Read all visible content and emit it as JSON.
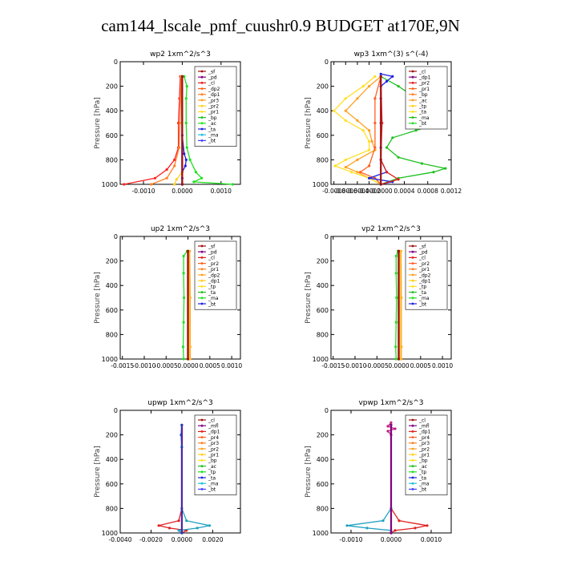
{
  "figure_title": "cam144_lscale_pmf_cuushr0.9  BUDGET at170E,9N",
  "chart_data": [
    {
      "type": "line",
      "title": "wp2  1xm^2/s^3",
      "ylabel": "Pressure [hPa]",
      "xlim": [
        -0.0016,
        0.0015
      ],
      "ylim": [
        1000,
        0
      ],
      "xticks": [
        -0.001,
        0.0,
        0.001
      ],
      "xtick_labels": [
        "-0.0010",
        "0.0000",
        "0.0010"
      ],
      "yticks": [
        0,
        200,
        400,
        600,
        800,
        1000
      ],
      "ytick_labels": [
        "0",
        "200",
        "400",
        "600",
        "800",
        "1000"
      ],
      "legend": [
        "_sf",
        "_pd",
        "_cl",
        "_dp2",
        "_dp1",
        "_pr3",
        "_pr2",
        "_pr1",
        "_bp",
        "_ac",
        "_ta",
        "_ma",
        "_bt"
      ],
      "series": [
        {
          "name": "_cl",
          "color": "#ff2020",
          "y": [
            120,
            300,
            500,
            700,
            800,
            880,
            950,
            1000
          ],
          "values": [
            -5e-05,
            -7e-05,
            -0.0001,
            -0.0001,
            -0.0002,
            -0.0004,
            -0.0007,
            -0.0015
          ]
        },
        {
          "name": "_dp2",
          "color": "#ff8020",
          "y": [
            120,
            300,
            500,
            700,
            850,
            950,
            1000
          ],
          "values": [
            -3e-05,
            -4e-05,
            -6e-05,
            -8e-05,
            -0.0002,
            -0.0004,
            -0.0008
          ]
        },
        {
          "name": "_pr1",
          "color": "#20e020",
          "y": [
            120,
            200,
            300,
            500,
            700,
            800,
            900,
            950,
            980,
            1000
          ],
          "values": [
            5e-05,
            0.00012,
            0.0001,
            0.0001,
            0.00012,
            0.0002,
            0.00035,
            0.0005,
            0.0003,
            0.0013
          ]
        },
        {
          "name": "_ta",
          "color": "#2020e0",
          "y": [
            600,
            750,
            800,
            850,
            900,
            950,
            1000
          ],
          "values": [
            0.0,
            5e-05,
            0.0001,
            8e-05,
            0.0,
            0.0,
            0.0
          ]
        },
        {
          "name": "_pr3",
          "color": "#ffd020",
          "y": [
            120,
            500,
            900,
            960,
            1000
          ],
          "values": [
            -2e-05,
            -1e-05,
            0.0,
            -0.00015,
            -0.0002
          ]
        },
        {
          "name": "_pd",
          "color": "#800080",
          "y": [
            120,
            1000
          ],
          "values": [
            0.0,
            0.0
          ]
        },
        {
          "name": "_bt",
          "color": "#20c0e0",
          "y": [
            120,
            1000
          ],
          "values": [
            0.0,
            0.0
          ]
        },
        {
          "name": "_sf",
          "color": "#a01010",
          "y": [
            120,
            1000
          ],
          "values": [
            0.0,
            0.0
          ]
        }
      ]
    },
    {
      "type": "line",
      "title": "wp3  1xm^(3) s^(-4)",
      "ylabel": "Pressure [hPa]",
      "xlim": [
        -0.00085,
        0.0012
      ],
      "ylim": [
        1000,
        0
      ],
      "xticks": [
        -0.0008,
        -0.0006,
        -0.0004,
        -0.0002,
        0.0,
        0.0004,
        0.0008,
        0.0012
      ],
      "xtick_labels": [
        "-0.0008",
        "-0.0006",
        "-0.0004",
        "-0.0002",
        "-0.0000",
        "0.0004",
        "0.0008",
        "0.0012"
      ],
      "yticks": [
        0,
        200,
        400,
        600,
        800,
        1000
      ],
      "ytick_labels": [
        "0",
        "200",
        "400",
        "600",
        "800",
        "1000"
      ],
      "legend": [
        "_cl",
        "_dp1",
        "_pr2",
        "_pr1",
        "_bp",
        "_ac",
        "_tp",
        "_ta",
        "_ma",
        "_bt"
      ],
      "series": [
        {
          "name": "_ac",
          "color": "#20c020",
          "y": [
            120,
            200,
            280,
            350,
            420,
            480,
            560,
            620,
            700,
            780,
            830,
            870,
            900,
            950,
            1000
          ],
          "values": [
            0.0,
            0.0003,
            0.00055,
            0.0005,
            0.0007,
            0.0011,
            0.0006,
            0.0002,
            0.0001,
            0.0003,
            0.0007,
            0.0011,
            0.0009,
            0.0003,
            0.0
          ]
        },
        {
          "name": "_pr2",
          "color": "#ffa020",
          "y": [
            120,
            200,
            300,
            400,
            480,
            560,
            650,
            720,
            800,
            860,
            900,
            950,
            1000
          ],
          "values": [
            0.0,
            -0.0002,
            -0.0004,
            -0.0006,
            -0.0004,
            -0.0002,
            -0.00015,
            -0.0001,
            -0.0004,
            -0.0006,
            -0.0004,
            -0.0002,
            0.0
          ]
        },
        {
          "name": "_pr1",
          "color": "#ffe020",
          "y": [
            120,
            200,
            300,
            400,
            480,
            560,
            650,
            720,
            800,
            850,
            900,
            950,
            1000
          ],
          "values": [
            -0.0001,
            -0.0003,
            -0.0006,
            -0.0008,
            -0.0006,
            -0.0003,
            -0.0002,
            -0.0002,
            -0.0006,
            -0.00078,
            -0.0005,
            -0.0002,
            0.0
          ]
        },
        {
          "name": "_dp1",
          "color": "#ff6020",
          "y": [
            120,
            300,
            500,
            700,
            850,
            900,
            950,
            1000
          ],
          "values": [
            0.0,
            -0.0001,
            -0.0001,
            -0.0001,
            -0.0002,
            -0.00035,
            -0.0001,
            0.0
          ]
        },
        {
          "name": "_tp",
          "color": "#2020e0",
          "y": [
            100,
            120,
            160,
            200,
            300,
            500,
            700,
            800,
            900,
            950,
            980,
            1000
          ],
          "values": [
            0.0,
            0.0002,
            0.0001,
            0.0,
            0.0,
            0.0,
            0.0,
            0.0,
            0.0001,
            -0.0002,
            0.0002,
            0.0
          ]
        },
        {
          "name": "_cl",
          "color": "#e02020",
          "y": [
            120,
            500,
            800,
            900,
            960,
            1000
          ],
          "values": [
            0.0,
            2e-05,
            0.0,
            0.0001,
            0.0003,
            0.0
          ]
        },
        {
          "name": "_bt",
          "color": "#20c0e0",
          "y": [
            120,
            1000
          ],
          "values": [
            0.0,
            0.0
          ]
        },
        {
          "name": "_ma",
          "color": "#a01010",
          "y": [
            120,
            1000
          ],
          "values": [
            0.0,
            0.0
          ]
        }
      ]
    },
    {
      "type": "line",
      "title": "up2  1xm^2/s^3",
      "ylabel": "Pressure [hPa]",
      "xlim": [
        -0.00155,
        0.0012
      ],
      "ylim": [
        1000,
        0
      ],
      "xticks": [
        -0.0015,
        -0.001,
        -0.0005,
        0.0,
        0.0005,
        0.001
      ],
      "xtick_labels": [
        "-0.0015",
        "-0.0010",
        "-0.0005",
        "0.0000",
        "0.0005",
        "0.0010"
      ],
      "yticks": [
        0,
        200,
        400,
        600,
        800,
        1000
      ],
      "ytick_labels": [
        "0",
        "200",
        "400",
        "600",
        "800",
        "1000"
      ],
      "legend": [
        "_sf",
        "_pd",
        "_cl",
        "_pr2",
        "_pr1",
        "_dp2",
        "_dp1",
        "_tp",
        "_ta",
        "_ma",
        "_bt"
      ],
      "series": [
        {
          "name": "_dp2",
          "color": "#20e020",
          "y": [
            120,
            160,
            300,
            500,
            700,
            900,
            1000
          ],
          "values": [
            -2e-05,
            -0.0001,
            -0.0001,
            -9e-05,
            -0.0001,
            -0.00011,
            -0.0001
          ]
        },
        {
          "name": "_pr2",
          "color": "#ffa020",
          "y": [
            120,
            500,
            900,
            1000
          ],
          "values": [
            4e-05,
            5e-05,
            5e-05,
            5e-05
          ]
        },
        {
          "name": "_pr1",
          "color": "#ffd020",
          "y": [
            120,
            500,
            900,
            1000
          ],
          "values": [
            2e-05,
            3e-05,
            3e-05,
            3e-05
          ]
        },
        {
          "name": "_pd",
          "color": "#800080",
          "y": [
            120,
            1000
          ],
          "values": [
            0.0,
            0.0
          ]
        },
        {
          "name": "_sf",
          "color": "#a01010",
          "y": [
            120,
            1000
          ],
          "values": [
            0.0,
            0.0
          ]
        }
      ]
    },
    {
      "type": "line",
      "title": "vp2  1xm^2/s^3",
      "ylabel": "Pressure [hPa]",
      "xlim": [
        -0.00155,
        0.0012
      ],
      "ylim": [
        1000,
        0
      ],
      "xticks": [
        -0.0015,
        -0.001,
        -0.0005,
        0.0,
        0.0005,
        0.001
      ],
      "xtick_labels": [
        "-0.0015",
        "-0.0010",
        "-0.0005",
        "0.0000",
        "0.0005",
        "0.0010"
      ],
      "yticks": [
        0,
        200,
        400,
        600,
        800,
        1000
      ],
      "ytick_labels": [
        "0",
        "200",
        "400",
        "600",
        "800",
        "1000"
      ],
      "legend": [
        "_sf",
        "_pd",
        "_cl",
        "_pr2",
        "_pr1",
        "_dp2",
        "_dp1",
        "_tp",
        "_ta",
        "_ma",
        "_bt"
      ],
      "series": [
        {
          "name": "_dp2",
          "color": "#20e020",
          "y": [
            120,
            160,
            300,
            500,
            700,
            900,
            1000
          ],
          "values": [
            -2e-05,
            -6e-05,
            -6e-05,
            -5e-05,
            -6e-05,
            -7e-05,
            -6e-05
          ]
        },
        {
          "name": "_pr2",
          "color": "#ffa020",
          "y": [
            120,
            500,
            900,
            1000
          ],
          "values": [
            5e-05,
            6e-05,
            6e-05,
            6e-05
          ]
        },
        {
          "name": "_pr1",
          "color": "#ffd020",
          "y": [
            120,
            500,
            900,
            1000
          ],
          "values": [
            3e-05,
            3e-05,
            3e-05,
            3e-05
          ]
        },
        {
          "name": "_pd",
          "color": "#800080",
          "y": [
            120,
            1000
          ],
          "values": [
            0.0,
            0.0
          ]
        },
        {
          "name": "_sf",
          "color": "#a01010",
          "y": [
            120,
            1000
          ],
          "values": [
            0.0,
            0.0
          ]
        }
      ]
    },
    {
      "type": "line",
      "title": "upwp  1xm^2/s^3",
      "ylabel": "Pressure [hPa]",
      "xlim": [
        -0.004,
        0.0038
      ],
      "ylim": [
        1000,
        0
      ],
      "xticks": [
        -0.004,
        -0.002,
        0.0,
        0.002
      ],
      "xtick_labels": [
        "-0.0040",
        "-0.0020",
        "0.0000",
        "0.0020"
      ],
      "yticks": [
        0,
        200,
        400,
        600,
        800,
        1000
      ],
      "ytick_labels": [
        "0",
        "200",
        "400",
        "600",
        "800",
        "1000"
      ],
      "legend": [
        "_cl",
        "_mfl",
        "_dp1",
        "_pr4",
        "_pr3",
        "_pr2",
        "_pr1",
        "_bp",
        "_ac",
        "_tp",
        "_ta",
        "_ma",
        "_bt"
      ],
      "series": [
        {
          "name": "_dp1",
          "color": "#e02020",
          "y": [
            800,
            900,
            940,
            960,
            980,
            1000
          ],
          "values": [
            0.0,
            -0.0002,
            -0.0015,
            -0.0008,
            0.0003,
            0.0
          ]
        },
        {
          "name": "_ac",
          "color": "#20a0c0",
          "y": [
            800,
            900,
            940,
            960,
            980,
            1000
          ],
          "values": [
            0.0,
            0.0003,
            0.0018,
            0.001,
            -0.0002,
            0.0
          ]
        },
        {
          "name": "_mfl",
          "color": "#800080",
          "y": [
            120,
            1000
          ],
          "values": [
            0.0,
            0.0
          ]
        },
        {
          "name": "_tp",
          "color": "#2040c0",
          "y": [
            120,
            200,
            300,
            1000
          ],
          "values": [
            0.0,
            -5e-05,
            0.0,
            0.0
          ]
        }
      ]
    },
    {
      "type": "line",
      "title": "vpwp  1xm^2/s^3",
      "ylabel": "Pressure [hPa]",
      "xlim": [
        -0.0015,
        0.0015
      ],
      "ylim": [
        1000,
        0
      ],
      "xticks": [
        -0.001,
        0.0,
        0.001
      ],
      "xtick_labels": [
        "-0.0010",
        "0.0000",
        "0.0010"
      ],
      "yticks": [
        0,
        200,
        400,
        600,
        800,
        1000
      ],
      "ytick_labels": [
        "0",
        "200",
        "400",
        "600",
        "800",
        "1000"
      ],
      "legend": [
        "_cl",
        "_mfl",
        "_dp1",
        "_pr4",
        "_pr3",
        "_pr2",
        "_pr1",
        "_bp",
        "_ac",
        "_tp",
        "_ta",
        "_ma",
        "_bt"
      ],
      "series": [
        {
          "name": "_dp1",
          "color": "#e02020",
          "y": [
            800,
            900,
            940,
            960,
            980,
            1000
          ],
          "values": [
            0.0,
            0.0002,
            0.0009,
            0.0006,
            0.0001,
            0.0
          ]
        },
        {
          "name": "_ac",
          "color": "#20a0c0",
          "y": [
            800,
            900,
            940,
            960,
            980,
            1000
          ],
          "values": [
            0.0,
            -0.0002,
            -0.0011,
            -0.0006,
            0.0,
            0.0
          ]
        },
        {
          "name": "_cl",
          "color": "#c02080",
          "y": [
            100,
            130,
            150,
            170,
            200,
            1000
          ],
          "values": [
            0.0,
            -8e-05,
            0.0001,
            -8e-05,
            0.0,
            0.0
          ]
        },
        {
          "name": "_mfl",
          "color": "#800080",
          "y": [
            120,
            1000
          ],
          "values": [
            0.0,
            0.0
          ]
        }
      ]
    }
  ]
}
